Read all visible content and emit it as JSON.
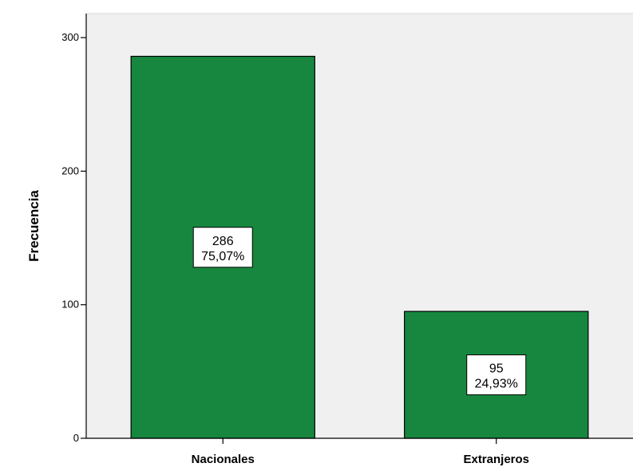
{
  "chart_data": {
    "type": "bar",
    "title": "",
    "xlabel": "",
    "ylabel": "Frecuencia",
    "categories": [
      "Nacionales",
      "Extranjeros"
    ],
    "values": [
      286,
      95
    ],
    "percent_labels": [
      "75,07%",
      "24,93%"
    ],
    "ylim": [
      0,
      318
    ],
    "yticks": [
      0,
      100,
      200,
      300
    ],
    "grid": false,
    "colors": {
      "bar_fill": "#17873f",
      "bar_stroke": "#000000",
      "plot_background": "#f0f0f0",
      "label_box_fill": "#ffffff"
    }
  }
}
